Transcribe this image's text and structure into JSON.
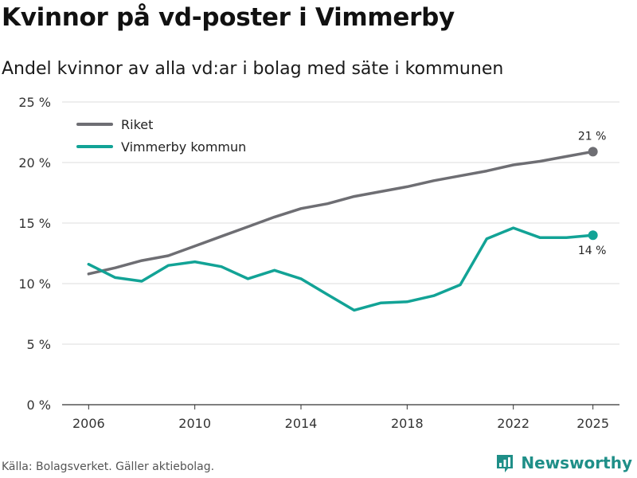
{
  "title": "Kvinnor på vd-poster i Vimmerby",
  "subtitle": "Andel kvinnor av alla vd:ar i bolag med säte i kommunen",
  "source": "Källa: Bolagsverket. Gäller aktiebolag.",
  "brand": {
    "name": "Newsworthy",
    "icon": "bar-chart-logo-icon",
    "color": "#1f8f88"
  },
  "chart_data": {
    "type": "line",
    "x": [
      2006,
      2007,
      2008,
      2009,
      2010,
      2011,
      2012,
      2013,
      2014,
      2015,
      2016,
      2017,
      2018,
      2019,
      2020,
      2021,
      2022,
      2023,
      2024,
      2025
    ],
    "xticks": [
      2006,
      2010,
      2014,
      2018,
      2022,
      2025
    ],
    "xlim": [
      2005,
      2026
    ],
    "ylim": [
      0,
      25
    ],
    "yticks": [
      0,
      5,
      10,
      15,
      20,
      25
    ],
    "ytick_labels": [
      "0 %",
      "5 %",
      "10 %",
      "15 %",
      "20 %",
      "25 %"
    ],
    "grid": true,
    "legend_position": "top-left",
    "series": [
      {
        "name": "Riket",
        "color": "#6e6e73",
        "values": [
          10.8,
          11.3,
          11.9,
          12.3,
          13.1,
          13.9,
          14.7,
          15.5,
          16.2,
          16.6,
          17.2,
          17.6,
          18.0,
          18.5,
          18.9,
          19.3,
          19.8,
          20.1,
          20.5,
          20.9
        ],
        "end_label": "21 %"
      },
      {
        "name": "Vimmerby kommun",
        "color": "#12a396",
        "values": [
          11.6,
          10.5,
          10.2,
          11.5,
          11.8,
          11.4,
          10.4,
          11.1,
          10.4,
          9.1,
          7.8,
          8.4,
          8.5,
          9.0,
          9.9,
          13.7,
          14.6,
          13.8,
          13.8,
          14.0
        ],
        "end_label": "14 %"
      }
    ]
  }
}
